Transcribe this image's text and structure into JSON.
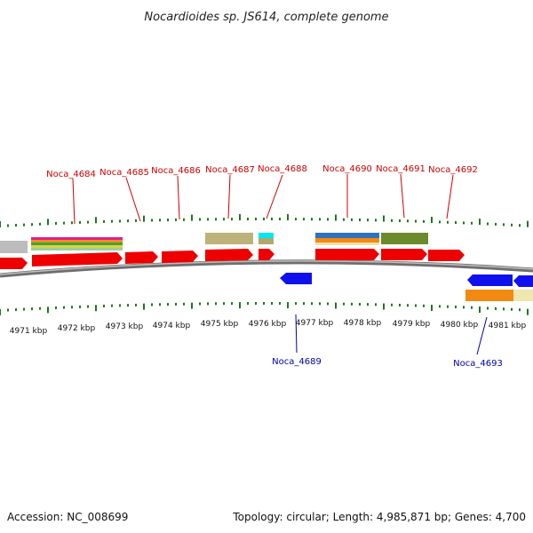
{
  "title": "Nocardioides sp. JS614, complete genome",
  "footer": {
    "accession": "Accession: NC_008699",
    "summary": "Topology: circular; Length: 4,985,871 bp; Genes: 4,700"
  },
  "colors": {
    "forward_gene": "#ee0000",
    "reverse_gene": "#1010ee",
    "forward_label": "#cc0000",
    "reverse_label": "#0000aa",
    "tick": "#1a7a1a",
    "backbone": "#888888"
  },
  "kbp_ticks": [
    "4971 kbp",
    "4972 kbp",
    "4973 kbp",
    "4974 kbp",
    "4975 kbp",
    "4976 kbp",
    "4977 kbp",
    "4978 kbp",
    "4979 kbp",
    "4980 kbp",
    "4981 kbp"
  ],
  "forward_labels": [
    "Noca_4684",
    "Noca_4685",
    "Noca_4686",
    "Noca_4687",
    "Noca_4688",
    "Noca_4690",
    "Noca_4691",
    "Noca_4692"
  ],
  "reverse_labels": [
    "Noca_4689",
    "Noca_4693"
  ]
}
